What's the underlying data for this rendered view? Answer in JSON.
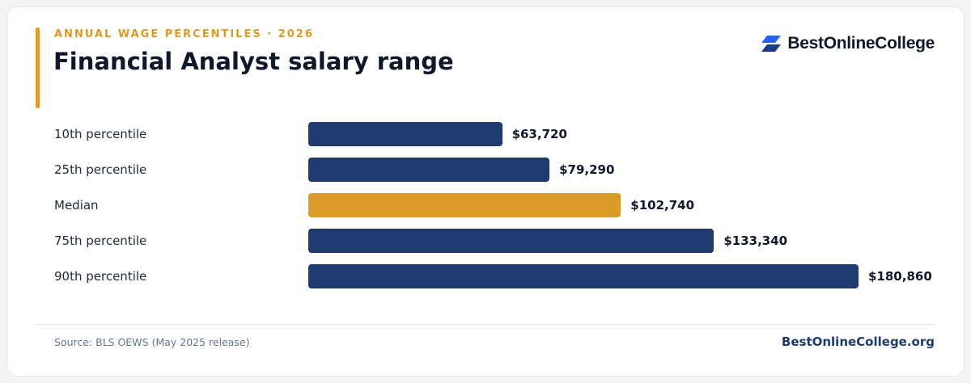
{
  "header": {
    "eyebrow": "ANNUAL WAGE PERCENTILES · 2026",
    "title": "Financial Analyst salary range"
  },
  "brand": {
    "logo_text": "BestOnlineCollege",
    "logo_icon": "stacked-parallelogram-logo-icon",
    "logo_colors": [
      "#2563eb",
      "#1e3a8a"
    ]
  },
  "colors": {
    "accent": "#d99a26",
    "bar_default": "#1e3a6e",
    "bar_highlight": "#d99a26"
  },
  "chart_data": {
    "type": "bar",
    "orientation": "horizontal",
    "categories": [
      "10th percentile",
      "25th percentile",
      "Median",
      "75th percentile",
      "90th percentile"
    ],
    "values": [
      63720,
      79290,
      102740,
      133340,
      180860
    ],
    "value_labels": [
      "$63,720",
      "$79,290",
      "$102,740",
      "$133,340",
      "$180,860"
    ],
    "highlight_index": 2,
    "xlim": [
      0,
      180860
    ],
    "grid": false,
    "legend": "none"
  },
  "footer": {
    "source": "Source: BLS OEWS (May 2025 release)",
    "site": "BestOnlineCollege.org"
  }
}
